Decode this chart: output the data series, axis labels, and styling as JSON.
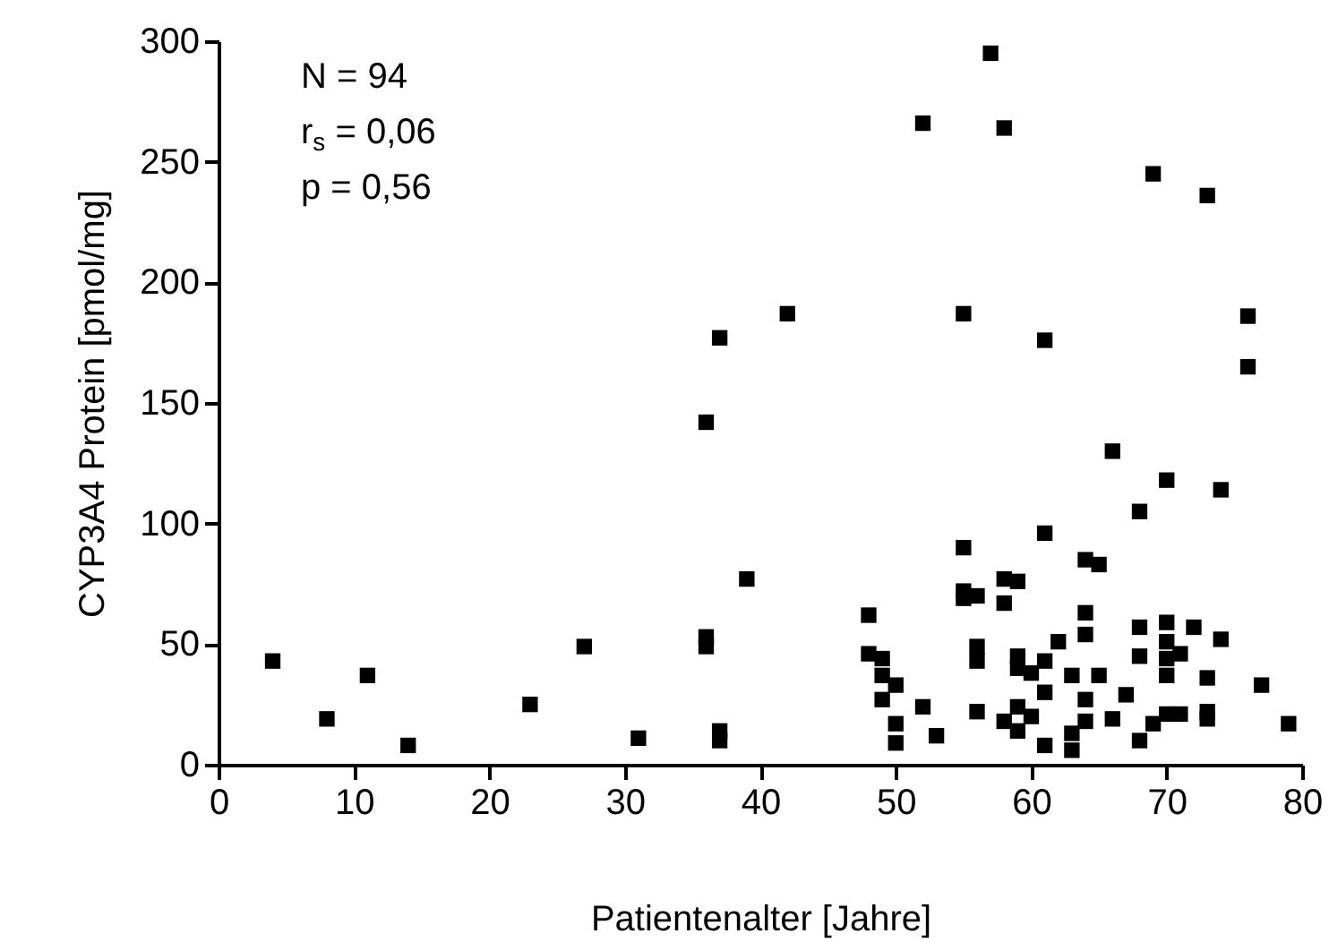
{
  "chart_data": {
    "type": "scatter",
    "xlabel": "Patientenalter [Jahre]",
    "ylabel": "CYP3A4 Protein [pmol/mg]",
    "annotations": [
      "N = 94",
      "r$_{s}$ = 0,06",
      "p = 0,56"
    ],
    "xlim": [
      0,
      80
    ],
    "xticks": [
      0,
      10,
      20,
      30,
      40,
      50,
      60,
      70,
      80
    ],
    "ylim": [
      0,
      300
    ],
    "yticks": [
      0,
      50,
      100,
      150,
      200,
      250,
      300
    ],
    "grid": false,
    "marker": "square",
    "series": [
      {
        "color": "#000000",
        "x": [
          4,
          8,
          11,
          14,
          23,
          27,
          31,
          36,
          36,
          36,
          37,
          37,
          37,
          39,
          42,
          52,
          57,
          58,
          55,
          61,
          69,
          73,
          76,
          76,
          66,
          70,
          74,
          68,
          61,
          55,
          64,
          65,
          58,
          59,
          55,
          55,
          56,
          58,
          64,
          48,
          64,
          68,
          70,
          72,
          74,
          62,
          56,
          56,
          70,
          70,
          71,
          68,
          48,
          49,
          59,
          59,
          61,
          60,
          49,
          50,
          63,
          65,
          70,
          73,
          77,
          49,
          61,
          67,
          64,
          52,
          56,
          59,
          60,
          58,
          59,
          50,
          50,
          53,
          61,
          63,
          63,
          64,
          66,
          68,
          69,
          70,
          71,
          73,
          73,
          79
        ],
        "values": [
          43,
          19,
          37,
          8,
          25,
          49,
          11,
          142,
          53,
          49,
          177,
          14,
          10,
          77,
          187,
          266,
          295,
          264,
          187,
          176,
          245,
          236,
          186,
          165,
          130,
          118,
          114,
          105,
          96,
          90,
          85,
          83,
          77,
          76,
          72,
          69,
          70,
          67,
          63,
          62,
          54,
          57,
          59,
          57,
          52,
          51,
          49,
          43,
          51,
          44,
          46,
          45,
          46,
          44,
          45,
          40,
          43,
          38,
          37,
          33,
          37,
          37,
          37,
          36,
          33,
          27,
          30,
          29,
          27,
          24,
          22,
          24,
          20,
          18,
          14,
          17,
          9,
          12,
          8,
          13,
          6,
          18,
          19,
          10,
          17,
          21,
          21,
          22,
          19,
          17
        ]
      }
    ]
  }
}
